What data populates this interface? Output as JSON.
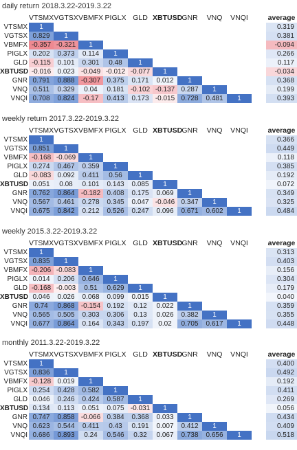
{
  "columns": [
    "VTSMX",
    "VGTSX",
    "VBMFX",
    "PIGLX",
    "GLD",
    "XBTUSD",
    "GNR",
    "VNQ",
    "VNQI"
  ],
  "bold_ticker": "XBTUSD",
  "average_label": "average",
  "tables": [
    {
      "title": "daily return 2018.3.22-2019.3.22",
      "rows": [
        {
          "label": "VTSMX",
          "values": [
            "1"
          ],
          "average": "0.319"
        },
        {
          "label": "VGTSX",
          "values": [
            "0.829",
            "1"
          ],
          "average": "0.381"
        },
        {
          "label": "VBMFX",
          "values": [
            "-0.357",
            "-0.321",
            "1"
          ],
          "average": "-0.094"
        },
        {
          "label": "PIGLX",
          "values": [
            "0.202",
            "0.373",
            "0.114",
            "1"
          ],
          "average": "0.266"
        },
        {
          "label": "GLD",
          "values": [
            "-0.115",
            "0.101",
            "0.301",
            "0.48",
            "1"
          ],
          "average": "0.117"
        },
        {
          "label": "XBTUSD",
          "values": [
            "-0.016",
            "0.023",
            "-0.049",
            "-0.012",
            "-0.077",
            "1"
          ],
          "average": "-0.034"
        },
        {
          "label": "GNR",
          "values": [
            "0.791",
            "0.888",
            "-0.307",
            "0.375",
            "0.171",
            "0.012",
            "1"
          ],
          "average": "0.368"
        },
        {
          "label": "VNQ",
          "values": [
            "0.511",
            "0.329",
            "0.04",
            "0.181",
            "-0.102",
            "-0.137",
            "0.287",
            "1"
          ],
          "average": "0.199"
        },
        {
          "label": "VNQI",
          "values": [
            "0.708",
            "0.824",
            "-0.17",
            "0.413",
            "0.173",
            "-0.015",
            "0.728",
            "0.481",
            "1"
          ],
          "average": "0.393"
        }
      ]
    },
    {
      "title": "weekly return 2017.3.22-2019.3.22",
      "rows": [
        {
          "label": "VTSMX",
          "values": [
            "1"
          ],
          "average": "0.366"
        },
        {
          "label": "VGTSX",
          "values": [
            "0.851",
            "1"
          ],
          "average": "0.449"
        },
        {
          "label": "VBMFX",
          "values": [
            "-0.168",
            "-0.069",
            "1"
          ],
          "average": "0.118"
        },
        {
          "label": "PIGLX",
          "values": [
            "0.274",
            "0.467",
            "0.359",
            "1"
          ],
          "average": "0.385"
        },
        {
          "label": "GLD",
          "values": [
            "-0.083",
            "0.092",
            "0.411",
            "0.56",
            "1"
          ],
          "average": "0.192"
        },
        {
          "label": "XBTUSD",
          "values": [
            "0.051",
            "0.08",
            "0.101",
            "0.143",
            "0.085",
            "1"
          ],
          "average": "0.072"
        },
        {
          "label": "GNR",
          "values": [
            "0.762",
            "0.864",
            "-0.182",
            "0.408",
            "0.175",
            "0.069",
            "1"
          ],
          "average": "0.349"
        },
        {
          "label": "VNQ",
          "values": [
            "0.567",
            "0.461",
            "0.278",
            "0.345",
            "0.047",
            "-0.046",
            "0.347",
            "1"
          ],
          "average": "0.325"
        },
        {
          "label": "VNQI",
          "values": [
            "0.675",
            "0.842",
            "0.212",
            "0.526",
            "0.247",
            "0.096",
            "0.671",
            "0.602",
            "1"
          ],
          "average": "0.484"
        }
      ]
    },
    {
      "title": "weekly 2015.3.22-2019.3.22",
      "rows": [
        {
          "label": "VTSMX",
          "values": [
            "1"
          ],
          "average": "0.313"
        },
        {
          "label": "VGTSX",
          "values": [
            "0.835",
            "1"
          ],
          "average": "0.403"
        },
        {
          "label": "VBMFX",
          "values": [
            "-0.206",
            "-0.083",
            "1"
          ],
          "average": "0.156"
        },
        {
          "label": "PIGLX",
          "values": [
            "0.014",
            "0.206",
            "0.646",
            "1"
          ],
          "average": "0.304"
        },
        {
          "label": "GLD",
          "values": [
            "-0.168",
            "-0.003",
            "0.51",
            "0.629",
            "1"
          ],
          "average": "0.179"
        },
        {
          "label": "XBTUSD",
          "values": [
            "0.046",
            "0.026",
            "0.068",
            "0.099",
            "0.015",
            "1"
          ],
          "average": "0.040"
        },
        {
          "label": "GNR",
          "values": [
            "0.74",
            "0.868",
            "-0.154",
            "0.192",
            "0.12",
            "0.022",
            "1"
          ],
          "average": "0.359"
        },
        {
          "label": "VNQ",
          "values": [
            "0.565",
            "0.505",
            "0.303",
            "0.306",
            "0.13",
            "0.026",
            "0.382",
            "1"
          ],
          "average": "0.355"
        },
        {
          "label": "VNQI",
          "values": [
            "0.677",
            "0.864",
            "0.164",
            "0.343",
            "0.197",
            "0.02",
            "0.705",
            "0.617",
            "1"
          ],
          "average": "0.448"
        }
      ]
    },
    {
      "title": "monthly 2011.3.22-2019.3.22",
      "rows": [
        {
          "label": "VTSMX",
          "values": [
            "1"
          ],
          "average": "0.400"
        },
        {
          "label": "VGTSX",
          "values": [
            "0.836",
            "1"
          ],
          "average": "0.492"
        },
        {
          "label": "VBMFX",
          "values": [
            "-0.128",
            "0.019",
            "1"
          ],
          "average": "0.192"
        },
        {
          "label": "PIGLX",
          "values": [
            "0.254",
            "0.428",
            "0.582",
            "1"
          ],
          "average": "0.411"
        },
        {
          "label": "GLD",
          "values": [
            "0.046",
            "0.246",
            "0.424",
            "0.587",
            "1"
          ],
          "average": "0.269"
        },
        {
          "label": "XBTUSD",
          "values": [
            "0.134",
            "0.113",
            "0.051",
            "0.075",
            "-0.031",
            "1"
          ],
          "average": "0.056"
        },
        {
          "label": "GNR",
          "values": [
            "0.747",
            "0.858",
            "-0.066",
            "0.384",
            "0.368",
            "0.033",
            "1"
          ],
          "average": "0.434"
        },
        {
          "label": "VNQ",
          "values": [
            "0.623",
            "0.544",
            "0.411",
            "0.43",
            "0.191",
            "0.007",
            "0.412",
            "1"
          ],
          "average": "0.409"
        },
        {
          "label": "VNQI",
          "values": [
            "0.686",
            "0.893",
            "0.24",
            "0.546",
            "0.32",
            "0.067",
            "0.738",
            "0.656",
            "1"
          ],
          "average": "0.518"
        }
      ]
    }
  ],
  "colors": {
    "diagonal": "#4472c4",
    "positive": "#5b86cf",
    "negative": "#e8606b"
  }
}
